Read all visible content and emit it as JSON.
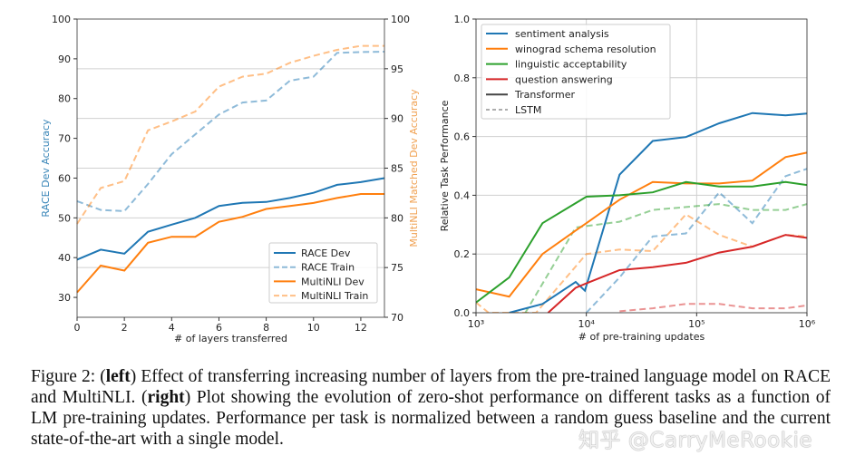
{
  "chart_data": [
    {
      "type": "line",
      "xlabel": "# of layers transferred",
      "ylabel": "RACE Dev Accuracy",
      "ylabel_right": "MultiNLI Matched Dev Accuracy",
      "xlim": [
        0,
        13
      ],
      "ylim": [
        25,
        100
      ],
      "ylim_right": [
        70,
        100
      ],
      "x_ticks": [
        0,
        2,
        4,
        6,
        8,
        10,
        12
      ],
      "y_ticks": [
        30,
        40,
        50,
        60,
        70,
        80,
        90,
        100
      ],
      "y_ticks_right": [
        70,
        75,
        80,
        85,
        90,
        95,
        100
      ],
      "grid": "horizontal at right-axis ticks",
      "legend_position": "lower-right",
      "x": [
        0,
        1,
        2,
        3,
        4,
        5,
        6,
        7,
        8,
        9,
        10,
        11,
        12,
        13
      ],
      "series": [
        {
          "name": "RACE Dev",
          "axis": "left",
          "color": "#1f77b4",
          "style": "solid",
          "values": [
            39.5,
            42,
            41,
            46.5,
            48.3,
            50,
            53,
            53.8,
            54,
            55,
            56.3,
            58.3,
            59,
            60
          ]
        },
        {
          "name": "RACE Train",
          "axis": "left",
          "color": "#1f77b4",
          "style": "dashed",
          "values": [
            54.2,
            52,
            51.7,
            58.5,
            66,
            71,
            76,
            79,
            79.5,
            84.5,
            85.5,
            91.5,
            91.7,
            91.8
          ]
        },
        {
          "name": "MultiNLI Dev",
          "axis": "right",
          "color": "#ff7f0e",
          "style": "solid",
          "values": [
            72.5,
            75.2,
            74.7,
            77.5,
            78.1,
            78.1,
            79.6,
            80.1,
            80.9,
            81.2,
            81.5,
            82.0,
            82.4,
            82.4
          ]
        },
        {
          "name": "MultiNLI Train",
          "axis": "right",
          "color": "#ff7f0e",
          "style": "dashed",
          "values": [
            79.4,
            83.0,
            83.7,
            88.8,
            89.7,
            90.7,
            93.2,
            94.2,
            94.5,
            95.6,
            96.3,
            96.9,
            97.3,
            97.3
          ]
        }
      ]
    },
    {
      "type": "line",
      "xlabel": "# of pre-training updates",
      "ylabel": "Relative Task Performance",
      "x_scale": "log",
      "xlim": [
        1000,
        1000000
      ],
      "ylim": [
        0,
        1.0
      ],
      "x_ticks": [
        1000,
        10000,
        100000,
        1000000
      ],
      "x_tick_labels": [
        "10³",
        "10⁴",
        "10⁵",
        "10⁶"
      ],
      "y_ticks": [
        0.0,
        0.2,
        0.4,
        0.6,
        0.8,
        1.0
      ],
      "y_tick_labels": [
        "0.0",
        "0.2",
        "0.4",
        "0.6",
        "0.8",
        "1.0"
      ],
      "grid": true,
      "legend_position": "top-left",
      "legend": [
        {
          "label": "sentiment analysis",
          "color": "#1f77b4",
          "style": "solid"
        },
        {
          "label": "winograd schema resolution",
          "color": "#ff7f0e",
          "style": "solid"
        },
        {
          "label": "linguistic acceptability",
          "color": "#2ca02c",
          "style": "solid"
        },
        {
          "label": "question answering",
          "color": "#d62728",
          "style": "solid"
        },
        {
          "label": "Transformer",
          "color": "#444444",
          "style": "solid"
        },
        {
          "label": "LSTM",
          "color": "#999999",
          "style": "dashed"
        }
      ],
      "series": [
        {
          "task": "sentiment analysis",
          "model": "Transformer",
          "color": "#1f77b4",
          "style": "solid",
          "x": [
            2000,
            4000,
            8000,
            9700,
            20000,
            40000,
            80000,
            160000,
            320000,
            640000,
            1000000
          ],
          "y": [
            0,
            0.03,
            0.105,
            0.075,
            0.47,
            0.585,
            0.598,
            0.645,
            0.68,
            0.672,
            0.678
          ]
        },
        {
          "task": "winograd schema resolution",
          "model": "Transformer",
          "color": "#ff7f0e",
          "style": "solid",
          "x": [
            1000,
            2000,
            4000,
            8000,
            10000,
            20000,
            40000,
            80000,
            160000,
            320000,
            640000,
            1000000
          ],
          "y": [
            0.08,
            0.055,
            0.2,
            0.28,
            0.305,
            0.385,
            0.445,
            0.44,
            0.44,
            0.45,
            0.53,
            0.545
          ]
        },
        {
          "task": "linguistic acceptability",
          "model": "Transformer",
          "color": "#2ca02c",
          "style": "solid",
          "x": [
            1000,
            2000,
            4000,
            10000,
            20000,
            40000,
            80000,
            160000,
            320000,
            640000,
            1000000
          ],
          "y": [
            0.035,
            0.12,
            0.305,
            0.395,
            0.4,
            0.41,
            0.445,
            0.43,
            0.43,
            0.445,
            0.435
          ]
        },
        {
          "task": "question answering",
          "model": "Transformer",
          "color": "#d62728",
          "style": "solid",
          "x": [
            4500,
            8000,
            10000,
            20000,
            40000,
            80000,
            160000,
            320000,
            640000,
            1000000
          ],
          "y": [
            0,
            0.085,
            0.1,
            0.145,
            0.155,
            0.17,
            0.205,
            0.225,
            0.265,
            0.255
          ]
        },
        {
          "task": "sentiment analysis",
          "model": "LSTM",
          "color": "#1f77b4",
          "style": "dashed",
          "x": [
            10000,
            20000,
            40000,
            80000,
            160000,
            320000,
            640000,
            1000000
          ],
          "y": [
            0,
            0.12,
            0.26,
            0.27,
            0.41,
            0.305,
            0.465,
            0.49
          ]
        },
        {
          "task": "winograd schema resolution",
          "model": "LSTM",
          "color": "#ff7f0e",
          "style": "dashed",
          "x": [
            1000,
            1300,
            3500,
            10000,
            20000,
            40000,
            80000,
            160000,
            320000,
            640000,
            1000000
          ],
          "y": [
            0.035,
            0,
            0,
            0.2,
            0.215,
            0.21,
            0.335,
            0.265,
            0.225,
            0.265,
            0.26
          ]
        },
        {
          "task": "linguistic acceptability",
          "model": "LSTM",
          "color": "#2ca02c",
          "style": "dashed",
          "x": [
            2800,
            8000,
            10000,
            20000,
            40000,
            80000,
            160000,
            320000,
            640000,
            1000000
          ],
          "y": [
            0,
            0.29,
            0.295,
            0.31,
            0.35,
            0.36,
            0.37,
            0.35,
            0.35,
            0.37
          ]
        },
        {
          "task": "question answering",
          "model": "LSTM",
          "color": "#d62728",
          "style": "dashed",
          "x": [
            20000,
            40000,
            80000,
            160000,
            320000,
            640000,
            1000000
          ],
          "y": [
            0.005,
            0.015,
            0.03,
            0.03,
            0.015,
            0.015,
            0.025
          ]
        }
      ]
    }
  ],
  "caption": {
    "prefix": "Figure 2: (",
    "left_bold": "left",
    "part1": ") Effect of transferring increasing number of layers from the pre-trained language model on RACE and MultiNLI. (",
    "right_bold": "right",
    "part2": ") Plot showing the evolution of zero-shot performance on different tasks as a function of LM pre-training updates. Performance per task is normalized between a random guess baseline and the current state-of-the-art with a single model."
  },
  "watermark": "知乎 @CarryMeRookie"
}
